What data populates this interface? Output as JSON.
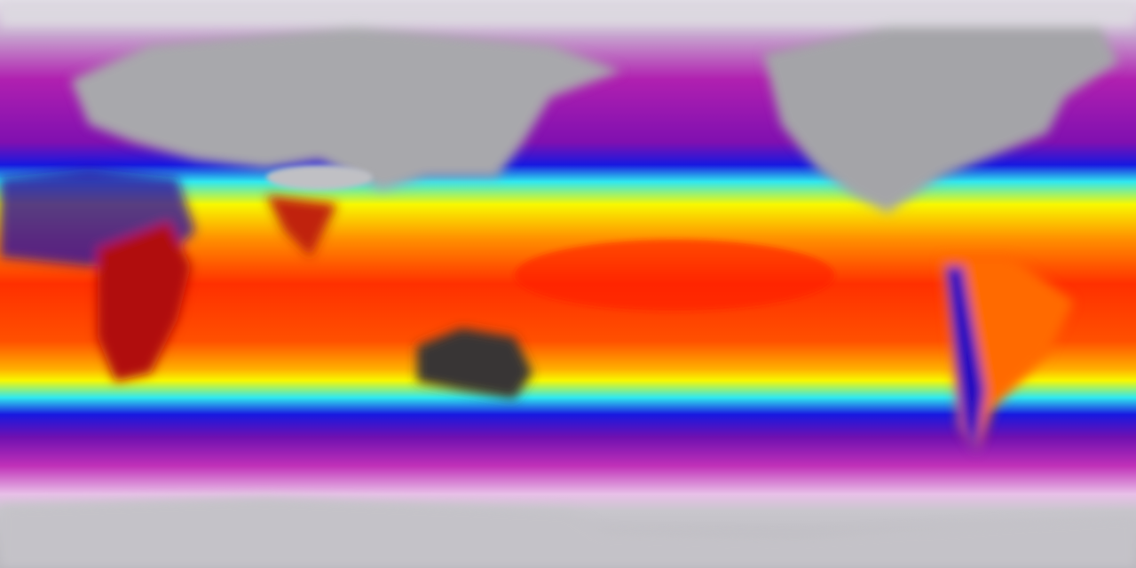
{
  "map": {
    "projection": "equirectangular",
    "colormap": [
      "#c8c6cc",
      "#b020b0",
      "#1010e0",
      "#30e8f0",
      "#f8f800",
      "#ff8000",
      "#ff2000",
      "#5a1010",
      "#303030"
    ],
    "land_color": "#a8a8a8",
    "hot_land_color": "#3a3434"
  }
}
